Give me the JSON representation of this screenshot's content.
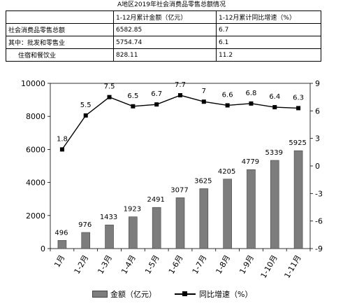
{
  "page": {
    "title": "A地区2019年社会消费品零售总额情况"
  },
  "table": {
    "header": [
      "",
      "1-12月累计金额（亿元）",
      "1-12月累计同比增速（%）"
    ],
    "rows": [
      {
        "label": "社会消费品零售总额",
        "amount": "6582.85",
        "growth": "6.7"
      },
      {
        "label": "其中：批发和零售业",
        "amount": "5754.74",
        "growth": "6.1"
      },
      {
        "label": "住宿和餐饮业",
        "amount": "828.11",
        "growth": "11.2"
      }
    ]
  },
  "chart_data": {
    "type": "bar",
    "categories": [
      "1月",
      "1-2月",
      "1-3月",
      "1-4月",
      "1-5月",
      "1-6月",
      "1-7月",
      "1-8月",
      "1-9月",
      "1-10月",
      "1-11月"
    ],
    "series": [
      {
        "name": "金额（亿元）",
        "type": "bar",
        "axis": "left",
        "values": [
          496,
          976,
          1433,
          1923,
          2491,
          3077,
          3625,
          4205,
          4779,
          5339,
          5925
        ]
      },
      {
        "name": "同比增速（%）",
        "type": "line",
        "axis": "right",
        "values": [
          1.8,
          5.5,
          7.5,
          6.5,
          6.7,
          7.7,
          7,
          6.6,
          6.8,
          6.4,
          6.3
        ]
      }
    ],
    "y_left": {
      "range": [
        0,
        10000
      ],
      "ticks": [
        "0",
        "2000",
        "4000",
        "6000",
        "8000",
        "10000"
      ]
    },
    "y_right": {
      "range": [
        -9,
        9
      ],
      "ticks": [
        "-9",
        "-6",
        "-3",
        "0",
        "3",
        "6",
        "9"
      ]
    },
    "bar_color": "#7d7d7d",
    "line_color": "#000000",
    "grid": false,
    "legend_position": "bottom"
  }
}
